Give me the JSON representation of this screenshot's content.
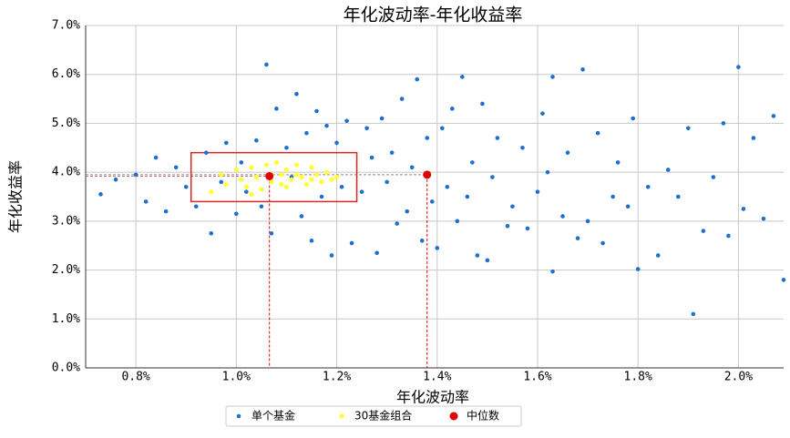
{
  "chart_data": {
    "type": "scatter",
    "title": "年化波动率-年化收益率",
    "x_label": "年化波动率",
    "y_label": "年化收益率",
    "xlim": [
      0.7,
      2.09
    ],
    "ylim": [
      0,
      7
    ],
    "xticks": [
      {
        "value": 0.8,
        "label": "0.8%"
      },
      {
        "value": 1.0,
        "label": "1.0%"
      },
      {
        "value": 1.2,
        "label": "1.2%"
      },
      {
        "value": 1.4,
        "label": "1.4%"
      },
      {
        "value": 1.6,
        "label": "1.6%"
      },
      {
        "value": 1.8,
        "label": "1.8%"
      },
      {
        "value": 2.0,
        "label": "2.0%"
      }
    ],
    "yticks": [
      {
        "value": 0,
        "label": "0.0%"
      },
      {
        "value": 1,
        "label": "1.0%"
      },
      {
        "value": 2,
        "label": "2.0%"
      },
      {
        "value": 3,
        "label": "3.0%"
      },
      {
        "value": 4,
        "label": "4.0%"
      },
      {
        "value": 5,
        "label": "5.0%"
      },
      {
        "value": 6,
        "label": "6.0%"
      },
      {
        "value": 7,
        "label": "7.0%"
      }
    ],
    "grid": true,
    "legend": "bottom",
    "highlight_box": {
      "color": "#d62728",
      "x": [
        0.91,
        1.24
      ],
      "y": [
        3.4,
        4.4
      ]
    },
    "series": [
      {
        "name": "单个基金",
        "color": "#1f6fd1",
        "size": 2.3,
        "x": [
          0.73,
          0.76,
          0.8,
          0.82,
          0.84,
          0.86,
          0.88,
          0.9,
          0.92,
          0.94,
          0.95,
          0.97,
          0.98,
          1.0,
          1.01,
          1.02,
          1.04,
          1.05,
          1.06,
          1.07,
          1.08,
          1.1,
          1.11,
          1.12,
          1.13,
          1.14,
          1.15,
          1.16,
          1.17,
          1.18,
          1.19,
          1.2,
          1.21,
          1.22,
          1.23,
          1.25,
          1.26,
          1.27,
          1.28,
          1.29,
          1.3,
          1.31,
          1.32,
          1.33,
          1.34,
          1.35,
          1.36,
          1.37,
          1.38,
          1.39,
          1.4,
          1.41,
          1.42,
          1.43,
          1.44,
          1.45,
          1.46,
          1.47,
          1.48,
          1.49,
          1.5,
          1.51,
          1.52,
          1.54,
          1.55,
          1.57,
          1.58,
          1.6,
          1.61,
          1.62,
          1.63,
          1.63,
          1.65,
          1.66,
          1.68,
          1.69,
          1.7,
          1.72,
          1.73,
          1.75,
          1.76,
          1.78,
          1.79,
          1.8,
          1.82,
          1.84,
          1.86,
          1.88,
          1.9,
          1.91,
          1.93,
          1.95,
          1.97,
          1.98,
          2.0,
          2.01,
          2.03,
          2.05,
          2.07,
          2.09
        ],
        "values": [
          3.55,
          3.85,
          3.95,
          3.4,
          4.3,
          3.2,
          4.1,
          3.7,
          3.3,
          4.4,
          2.75,
          3.8,
          4.6,
          3.15,
          4.2,
          3.6,
          4.65,
          3.3,
          6.2,
          2.75,
          5.3,
          4.5,
          3.9,
          5.6,
          3.1,
          4.8,
          2.6,
          5.25,
          3.5,
          4.95,
          2.3,
          4.6,
          3.7,
          5.05,
          2.55,
          3.6,
          4.9,
          4.3,
          2.35,
          5.1,
          3.8,
          4.4,
          2.95,
          5.5,
          3.2,
          4.1,
          5.9,
          2.6,
          4.7,
          3.4,
          2.45,
          4.9,
          3.7,
          5.3,
          3.0,
          5.95,
          3.5,
          4.2,
          2.3,
          5.4,
          2.2,
          3.9,
          4.7,
          2.9,
          3.3,
          4.5,
          2.85,
          3.6,
          5.2,
          4.0,
          1.97,
          5.95,
          3.1,
          4.4,
          2.65,
          6.1,
          3.0,
          4.8,
          2.55,
          3.5,
          4.2,
          3.3,
          5.1,
          2.02,
          3.7,
          2.3,
          4.05,
          3.5,
          4.9,
          1.1,
          2.8,
          3.9,
          5.0,
          2.7,
          6.15,
          3.25,
          4.7,
          3.05,
          5.15,
          1.8
        ]
      },
      {
        "name": "30基金组合",
        "color": "#ffff33",
        "size": 2.6,
        "x": [
          0.95,
          0.97,
          0.98,
          1.0,
          1.01,
          1.02,
          1.03,
          1.04,
          1.05,
          1.06,
          1.07,
          1.08,
          1.09,
          1.1,
          1.1,
          1.11,
          1.12,
          1.13,
          1.14,
          1.15,
          1.16,
          1.17,
          1.18,
          1.19,
          1.2,
          1.03,
          1.07,
          1.09,
          1.12,
          1.15
        ],
        "values": [
          3.6,
          3.95,
          3.75,
          4.05,
          3.85,
          3.7,
          4.1,
          3.9,
          3.65,
          4.15,
          3.8,
          4.2,
          3.95,
          3.7,
          4.05,
          3.85,
          4.15,
          3.9,
          3.75,
          4.1,
          3.95,
          3.8,
          4.0,
          3.85,
          3.9,
          3.55,
          3.95,
          3.75,
          3.95,
          3.85
        ]
      },
      {
        "name": "中位数",
        "color": "#e00000",
        "size": 4.5,
        "median_lines": true,
        "x": [
          1.066,
          1.38
        ],
        "values": [
          3.92,
          3.95
        ]
      }
    ]
  }
}
